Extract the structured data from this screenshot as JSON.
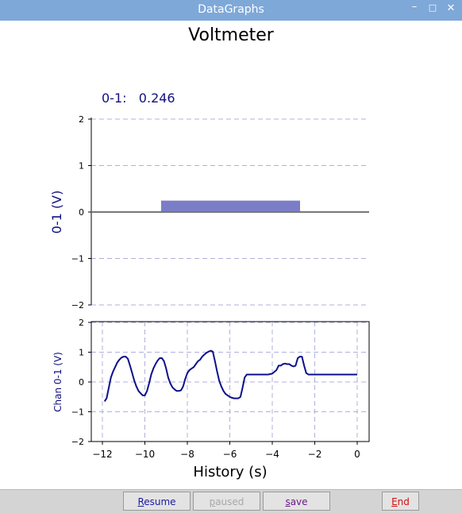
{
  "window": {
    "title": "DataGraphs",
    "controls": {
      "minimize": "–",
      "maximize": "□",
      "close": "✕"
    }
  },
  "heading": "Voltmeter",
  "readout": {
    "label": "0-1:",
    "value": "0.246"
  },
  "colors": {
    "titlebar": "#7ea8d8",
    "bar": "#7b7ec6",
    "trace": "#0d108a",
    "readout": "#101080",
    "grid": "#b0b0dd"
  },
  "chart_data": [
    {
      "type": "bar",
      "categories": [
        "0-1"
      ],
      "values": [
        0.246
      ],
      "ylabel": "0-1 (V)",
      "ylim": [
        -2,
        2
      ],
      "yticks": [
        "2",
        "1",
        "0",
        "−1",
        "−2"
      ],
      "grid": true
    },
    {
      "type": "line",
      "xlabel": "History (s)",
      "ylabel": "Chan 0-1 (V)",
      "xlim": [
        -12.5,
        0.6
      ],
      "ylim": [
        -2,
        2
      ],
      "xticks": [
        "−12",
        "−10",
        "−8",
        "−6",
        "−4",
        "−2",
        "0"
      ],
      "yticks": [
        "2",
        "1",
        "0",
        "−1",
        "−2"
      ],
      "grid": true,
      "series": [
        {
          "x": [
            -11.9,
            -11.8,
            -11.7,
            -11.6,
            -11.5,
            -11.4,
            -11.3,
            -11.2,
            -11.1,
            -11.0,
            -10.9,
            -10.8,
            -10.7,
            -10.6,
            -10.5,
            -10.4,
            -10.3,
            -10.2,
            -10.1,
            -10.0,
            -9.9,
            -9.8,
            -9.7,
            -9.6,
            -9.5,
            -9.4,
            -9.3,
            -9.2,
            -9.1,
            -9.0,
            -8.9,
            -8.8,
            -8.7,
            -8.6,
            -8.5,
            -8.4,
            -8.3,
            -8.2,
            -8.1,
            -8.0,
            -7.9,
            -7.8,
            -7.7,
            -7.6,
            -7.5,
            -7.4,
            -7.3,
            -7.2,
            -7.1,
            -7.0,
            -6.9,
            -6.8,
            -6.7,
            -6.6,
            -6.5,
            -6.4,
            -6.3,
            -6.2,
            -6.1,
            -6.0,
            -5.9,
            -5.8,
            -5.7,
            -5.6,
            -5.5,
            -5.4,
            -5.3,
            -5.2,
            -5.1,
            -5.0,
            -4.9,
            -4.8,
            -4.6,
            -4.4,
            -4.2,
            -4.0,
            -3.8,
            -3.7,
            -3.6,
            -3.5,
            -3.4,
            -3.3,
            -3.2,
            -3.1,
            -3.0,
            -2.9,
            -2.8,
            -2.7,
            -2.6,
            -2.5,
            -2.4,
            -2.3,
            -2.2,
            -2.1,
            -2.0,
            -1.9,
            -1.5,
            -1.0,
            -0.5,
            0.0
          ],
          "y": [
            -0.65,
            -0.55,
            -0.2,
            0.15,
            0.35,
            0.5,
            0.65,
            0.75,
            0.82,
            0.85,
            0.85,
            0.78,
            0.55,
            0.3,
            0.05,
            -0.15,
            -0.3,
            -0.38,
            -0.45,
            -0.45,
            -0.3,
            -0.05,
            0.25,
            0.45,
            0.6,
            0.72,
            0.8,
            0.8,
            0.7,
            0.45,
            0.15,
            -0.05,
            -0.18,
            -0.25,
            -0.3,
            -0.3,
            -0.28,
            -0.15,
            0.1,
            0.3,
            0.4,
            0.45,
            0.5,
            0.6,
            0.7,
            0.75,
            0.85,
            0.92,
            0.98,
            1.02,
            1.05,
            1.02,
            0.7,
            0.35,
            0.05,
            -0.15,
            -0.3,
            -0.4,
            -0.45,
            -0.5,
            -0.53,
            -0.55,
            -0.55,
            -0.55,
            -0.5,
            -0.2,
            0.15,
            0.25,
            0.25,
            0.25,
            0.25,
            0.25,
            0.25,
            0.25,
            0.25,
            0.28,
            0.4,
            0.55,
            0.55,
            0.6,
            0.62,
            0.6,
            0.6,
            0.55,
            0.52,
            0.55,
            0.8,
            0.85,
            0.85,
            0.55,
            0.3,
            0.25,
            0.25,
            0.25,
            0.25,
            0.25,
            0.25,
            0.25,
            0.25,
            0.25
          ]
        }
      ]
    }
  ],
  "buttons": {
    "resume": {
      "key": "R",
      "rest": "esume"
    },
    "paused": {
      "key": "p",
      "rest": "aused"
    },
    "save": {
      "key": "s",
      "rest": "ave"
    },
    "end": {
      "key": "E",
      "rest": "nd"
    }
  }
}
